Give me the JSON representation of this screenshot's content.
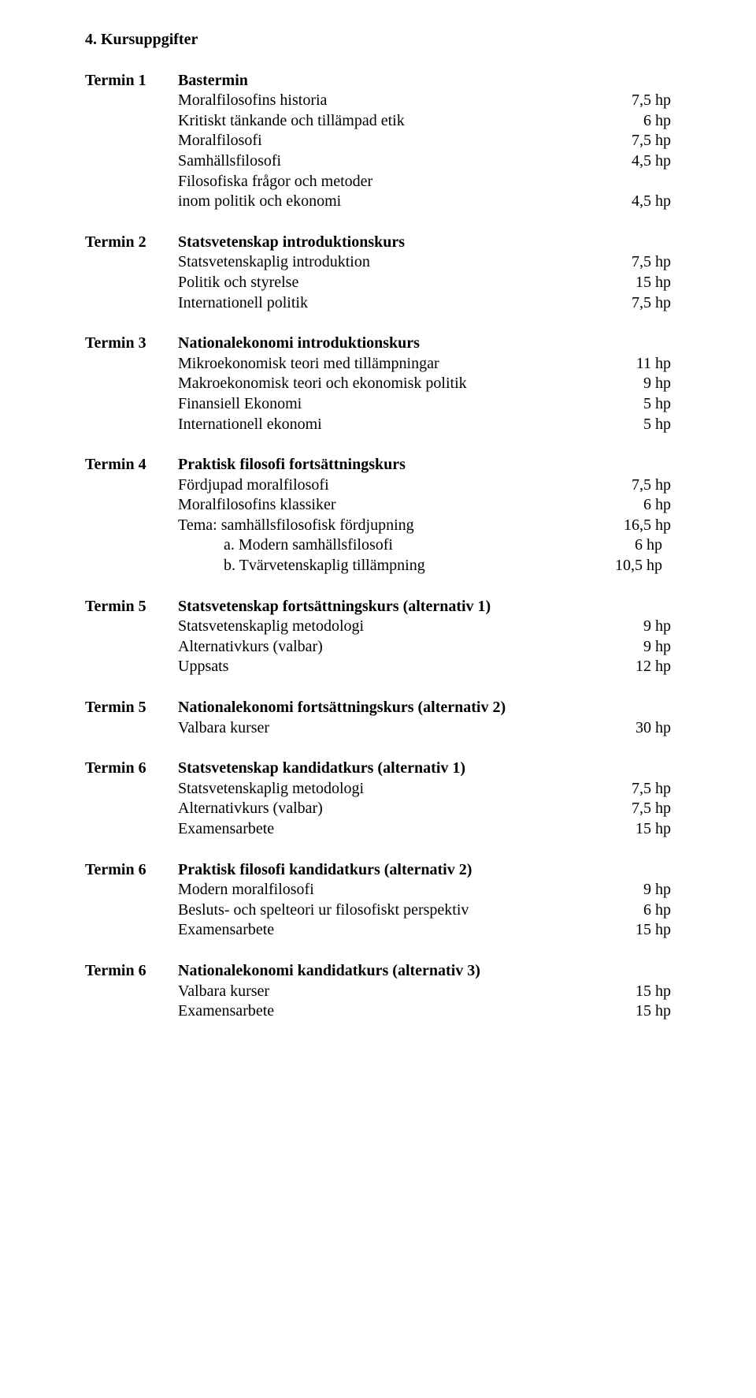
{
  "heading": "4. Kursuppgifter",
  "termins": [
    {
      "label": "Termin 1",
      "title": "Bastermin",
      "rows": [
        {
          "l": "Moralfilosofins historia",
          "r": "7,5 hp"
        },
        {
          "l": "Kritiskt tänkande och tillämpad etik",
          "r": "6 hp"
        },
        {
          "l": "Moralfilosofi",
          "r": "7,5 hp"
        },
        {
          "l": "Samhällsfilosofi",
          "r": "4,5 hp"
        },
        {
          "l": "Filosofiska frågor och metoder",
          "r": ""
        },
        {
          "l": "inom politik och ekonomi",
          "r": "4,5 hp"
        }
      ]
    },
    {
      "label": "Termin 2",
      "title": "Statsvetenskap introduktionskurs",
      "rows": [
        {
          "l": "Statsvetenskaplig introduktion",
          "r": "7,5 hp"
        },
        {
          "l": "Politik och styrelse",
          "r": "15 hp"
        },
        {
          "l": "Internationell politik",
          "r": "7,5 hp"
        }
      ]
    },
    {
      "label": "Termin 3",
      "title": "Nationalekonomi introduktionskurs",
      "rows": [
        {
          "l": "Mikroekonomisk teori med tillämpningar",
          "r": "11 hp"
        },
        {
          "l": "Makroekonomisk teori och ekonomisk politik",
          "r": "9 hp"
        },
        {
          "l": "Finansiell Ekonomi",
          "r": "5 hp"
        },
        {
          "l": "Internationell ekonomi",
          "r": "5 hp"
        }
      ]
    },
    {
      "label": "Termin 4",
      "title": "Praktisk filosofi fortsättningskurs",
      "rows": [
        {
          "l": "Fördjupad moralfilosofi",
          "r": "7,5 hp"
        },
        {
          "l": "Moralfilosofins klassiker",
          "r": "6 hp"
        },
        {
          "l": "Tema: samhällsfilosofisk fördjupning",
          "r": "16,5 hp"
        },
        {
          "l": "a. Modern samhällsfilosofi",
          "indent": true,
          "r": "6 hp",
          "rIndent": true
        },
        {
          "l": "b. Tvärvetenskaplig tillämpning",
          "indent": true,
          "r": "10,5 hp",
          "rIndent": true
        }
      ]
    },
    {
      "label": "Termin 5",
      "title": "Statsvetenskap fortsättningskurs (alternativ 1)",
      "rows": [
        {
          "l": "Statsvetenskaplig metodologi",
          "r": "9 hp"
        },
        {
          "l": "Alternativkurs (valbar)",
          "r": "9 hp"
        },
        {
          "l": "Uppsats",
          "r": "12 hp"
        }
      ]
    },
    {
      "label": "Termin 5",
      "title": "Nationalekonomi fortsättningskurs (alternativ 2)",
      "rows": [
        {
          "l": "Valbara kurser",
          "r": "30 hp"
        }
      ]
    },
    {
      "label": "Termin 6",
      "title": "Statsvetenskap kandidatkurs (alternativ 1)",
      "rows": [
        {
          "l": "Statsvetenskaplig metodologi",
          "r": "7,5 hp"
        },
        {
          "l": "Alternativkurs (valbar)",
          "r": "7,5 hp"
        },
        {
          "l": "Examensarbete",
          "r": "15 hp"
        }
      ]
    },
    {
      "label": "Termin 6",
      "title": "Praktisk filosofi kandidatkurs (alternativ 2)",
      "rows": [
        {
          "l": "Modern moralfilosofi",
          "r": "9 hp"
        },
        {
          "l": "Besluts- och spelteori ur filosofiskt perspektiv",
          "r": "6 hp"
        },
        {
          "l": "Examensarbete",
          "r": "15 hp"
        }
      ]
    },
    {
      "label": "Termin 6",
      "title": "Nationalekonomi kandidatkurs (alternativ 3)",
      "rows": [
        {
          "l": "Valbara kurser",
          "r": "15 hp"
        },
        {
          "l": "Examensarbete",
          "r": "15 hp"
        }
      ]
    }
  ]
}
